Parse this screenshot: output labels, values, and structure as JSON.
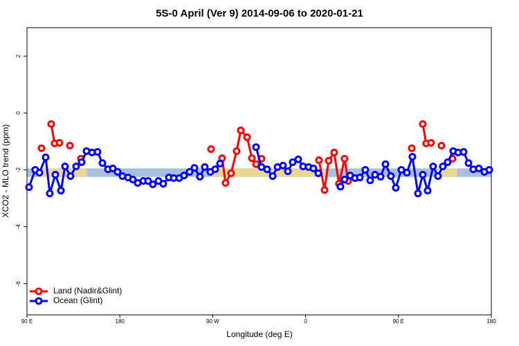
{
  "chart_data": {
    "type": "line",
    "title": "5S-0 April (Ver 9)   2014-09-06 to 2020-01-21",
    "x_label": "Longitude (deg E)",
    "y_label": "XCO2 - MLO trend (ppm)",
    "xlim": [
      90,
      540
    ],
    "ylim": [
      -7.1,
      3.0
    ],
    "xticks": [
      {
        "value": 90,
        "label": "90 E"
      },
      180,
      {
        "value": 270,
        "label": "90 W"
      },
      {
        "value": 360,
        "label": "0"
      },
      {
        "value": 450,
        "label": "90 E"
      },
      {
        "value": 540,
        "label": "180"
      }
    ],
    "yticks": [
      -6,
      -4,
      -2,
      0,
      2
    ],
    "legend": "bottom-left",
    "bands": [
      {
        "color": "#a9bfdf",
        "xmin": 90,
        "xmax": 540,
        "ymin": -2.25,
        "ymax": -1.95
      },
      {
        "color": "#f5d98a",
        "xmin": 104,
        "xmax": 148,
        "ymin": -2.25,
        "ymax": -1.95
      },
      {
        "color": "#f5d98a",
        "xmin": 268,
        "xmax": 379,
        "ymin": -2.25,
        "ymax": -1.95
      },
      {
        "color": "#f5d98a",
        "xmin": 486,
        "xmax": 507,
        "ymin": -2.25,
        "ymax": -1.95
      }
    ],
    "series": [
      {
        "name": "Land (Nadir&Glint)",
        "color": "#ff0000",
        "x": [
          104.1,
          null,
          113.5,
          116.8,
          121.5,
          null,
          131.6,
          null,
          142.3,
          null,
          268.4,
          null,
          279.1,
          282.5,
          287.8,
          293.2,
          297.2,
          303.3,
          308.0,
          312.0,
          null,
          317.3,
          null,
          373.0,
          378.4,
          382.4,
          387.7,
          392.4,
          397.8,
          401.2,
          null,
          462.9,
          null,
          473.6,
          476.9,
          481.6,
          null,
          491.7,
          null,
          502.4
        ],
        "values": [
          -1.24,
          null,
          -0.39,
          -1.07,
          -1.05,
          null,
          -1.15,
          null,
          -1.61,
          null,
          -1.27,
          null,
          -1.59,
          -2.46,
          -2.12,
          -1.34,
          -0.61,
          -0.85,
          -1.59,
          -1.8,
          null,
          -1.61,
          null,
          -1.66,
          -2.71,
          -1.68,
          -1.39,
          -2.49,
          -1.61,
          -2.39,
          null,
          -1.24,
          null,
          -0.39,
          -1.07,
          -1.05,
          null,
          -1.15,
          null,
          -1.61
        ]
      },
      {
        "name": "Ocean (Glint)",
        "color": "#0000ff",
        "x": [
          92.0,
          98.0,
          102.1,
          108.1,
          112.1,
          117.5,
          122.9,
          126.9,
          132.2,
          137.6,
          143.0,
          147.7,
          153.0,
          158.4,
          163.1,
          168.5,
          173.2,
          177.8,
          182.5,
          187.9,
          192.6,
          197.3,
          202.7,
          207.4,
          212.0,
          217.4,
          222.1,
          227.5,
          232.2,
          237.5,
          242.2,
          247.6,
          252.3,
          257.6,
          262.3,
          267.7,
          272.4,
          277.1,
          null,
          312.0,
          317.3,
          322.7,
          328.1,
          332.8,
          338.1,
          342.8,
          347.5,
          352.9,
          357.6,
          362.9,
          367.6,
          372.3,
          null,
          393.8,
          397.8,
          403.2,
          407.9,
          412.6,
          417.9,
          422.6,
          427.3,
          432.7,
          437.4,
          442.7,
          447.4,
          452.8,
          458.2,
          463.5,
          468.9,
          473.6,
          478.3,
          483.6,
          488.3,
          493.0,
          497.7,
          503.1,
          507.8,
          513.2,
          517.9,
          522.5,
          527.9,
          533.3,
          538.0
        ],
        "values": [
          -2.61,
          -2.0,
          -2.1,
          -1.56,
          -2.83,
          -2.17,
          -2.73,
          -1.88,
          -2.22,
          -1.88,
          -1.73,
          -1.34,
          -1.39,
          -1.37,
          -1.76,
          -1.98,
          -1.95,
          -2.07,
          -2.22,
          -2.27,
          -2.34,
          -2.46,
          -2.39,
          -2.39,
          -2.51,
          -2.39,
          -2.49,
          -2.27,
          -2.29,
          -2.29,
          -2.2,
          -2.07,
          -1.93,
          -2.24,
          -1.9,
          -2.07,
          -1.98,
          -1.78,
          null,
          -1.2,
          -1.9,
          -1.98,
          -2.22,
          -1.9,
          -1.85,
          -2.05,
          -1.73,
          -1.63,
          -1.88,
          -1.9,
          -1.95,
          -2.12,
          null,
          -2.59,
          -2.34,
          -2.2,
          -2.29,
          -2.27,
          -2.0,
          -2.37,
          -2.17,
          -2.24,
          -1.8,
          -2.22,
          -2.63,
          -2.0,
          -2.1,
          -1.54,
          -2.83,
          -2.17,
          -2.73,
          -1.88,
          -2.22,
          -1.88,
          -1.73,
          -1.34,
          -1.39,
          -1.37,
          -1.76,
          -1.98,
          -1.95,
          -2.07,
          -2.0
        ]
      }
    ]
  }
}
